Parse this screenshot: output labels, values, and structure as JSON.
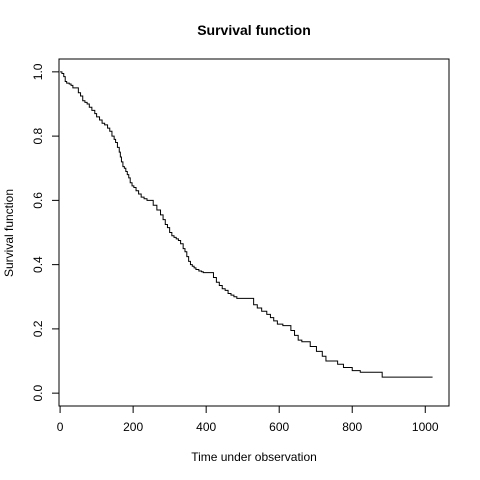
{
  "chart_data": {
    "type": "line",
    "step": true,
    "title": "Survival function",
    "xlabel": "Time under observation",
    "ylabel": "Survival function",
    "xlim": [
      -3,
      1065
    ],
    "ylim": [
      -0.04,
      1.04
    ],
    "x_ticks": [
      0,
      200,
      400,
      600,
      800,
      1000
    ],
    "x_tick_labels": [
      "0",
      "200",
      "400",
      "600",
      "800",
      "1000"
    ],
    "y_ticks": [
      0.0,
      0.2,
      0.4,
      0.6,
      0.8,
      1.0
    ],
    "y_tick_labels": [
      "0.0",
      "0.2",
      "0.4",
      "0.6",
      "0.8",
      "1.0"
    ],
    "grid": false,
    "legend": "none",
    "line_color": "#000000",
    "series": [
      {
        "x": [
          0,
          5,
          10,
          14,
          18,
          25,
          30,
          35,
          50,
          56,
          62,
          68,
          74,
          80,
          87,
          95,
          100,
          108,
          115,
          122,
          130,
          136,
          142,
          148,
          152,
          157,
          162,
          165,
          168,
          172,
          176,
          180,
          184,
          188,
          192,
          197,
          202,
          208,
          215,
          222,
          230,
          238,
          255,
          265,
          275,
          282,
          288,
          294,
          300,
          306,
          312,
          318,
          324,
          330,
          337,
          342,
          347,
          352,
          357,
          362,
          367,
          372,
          380,
          387,
          392,
          420,
          428,
          436,
          444,
          452,
          460,
          468,
          476,
          484,
          492,
          530,
          540,
          552,
          566,
          576,
          585,
          595,
          610,
          632,
          642,
          652,
          662,
          685,
          702,
          718,
          728,
          760,
          776,
          800,
          822,
          882,
          1020
        ],
        "y": [
          1.0,
          0.995,
          0.985,
          0.97,
          0.965,
          0.962,
          0.958,
          0.95,
          0.935,
          0.925,
          0.91,
          0.905,
          0.9,
          0.89,
          0.88,
          0.87,
          0.86,
          0.85,
          0.84,
          0.835,
          0.825,
          0.815,
          0.8,
          0.79,
          0.78,
          0.765,
          0.75,
          0.735,
          0.72,
          0.705,
          0.7,
          0.69,
          0.68,
          0.67,
          0.655,
          0.645,
          0.64,
          0.63,
          0.62,
          0.61,
          0.605,
          0.6,
          0.585,
          0.57,
          0.555,
          0.54,
          0.525,
          0.515,
          0.5,
          0.49,
          0.485,
          0.48,
          0.475,
          0.465,
          0.45,
          0.44,
          0.425,
          0.41,
          0.4,
          0.395,
          0.39,
          0.385,
          0.38,
          0.378,
          0.375,
          0.36,
          0.345,
          0.335,
          0.325,
          0.32,
          0.31,
          0.305,
          0.3,
          0.295,
          0.295,
          0.275,
          0.265,
          0.255,
          0.245,
          0.235,
          0.225,
          0.215,
          0.21,
          0.195,
          0.18,
          0.165,
          0.16,
          0.145,
          0.13,
          0.115,
          0.1,
          0.09,
          0.08,
          0.07,
          0.065,
          0.05,
          0.05
        ]
      }
    ]
  }
}
